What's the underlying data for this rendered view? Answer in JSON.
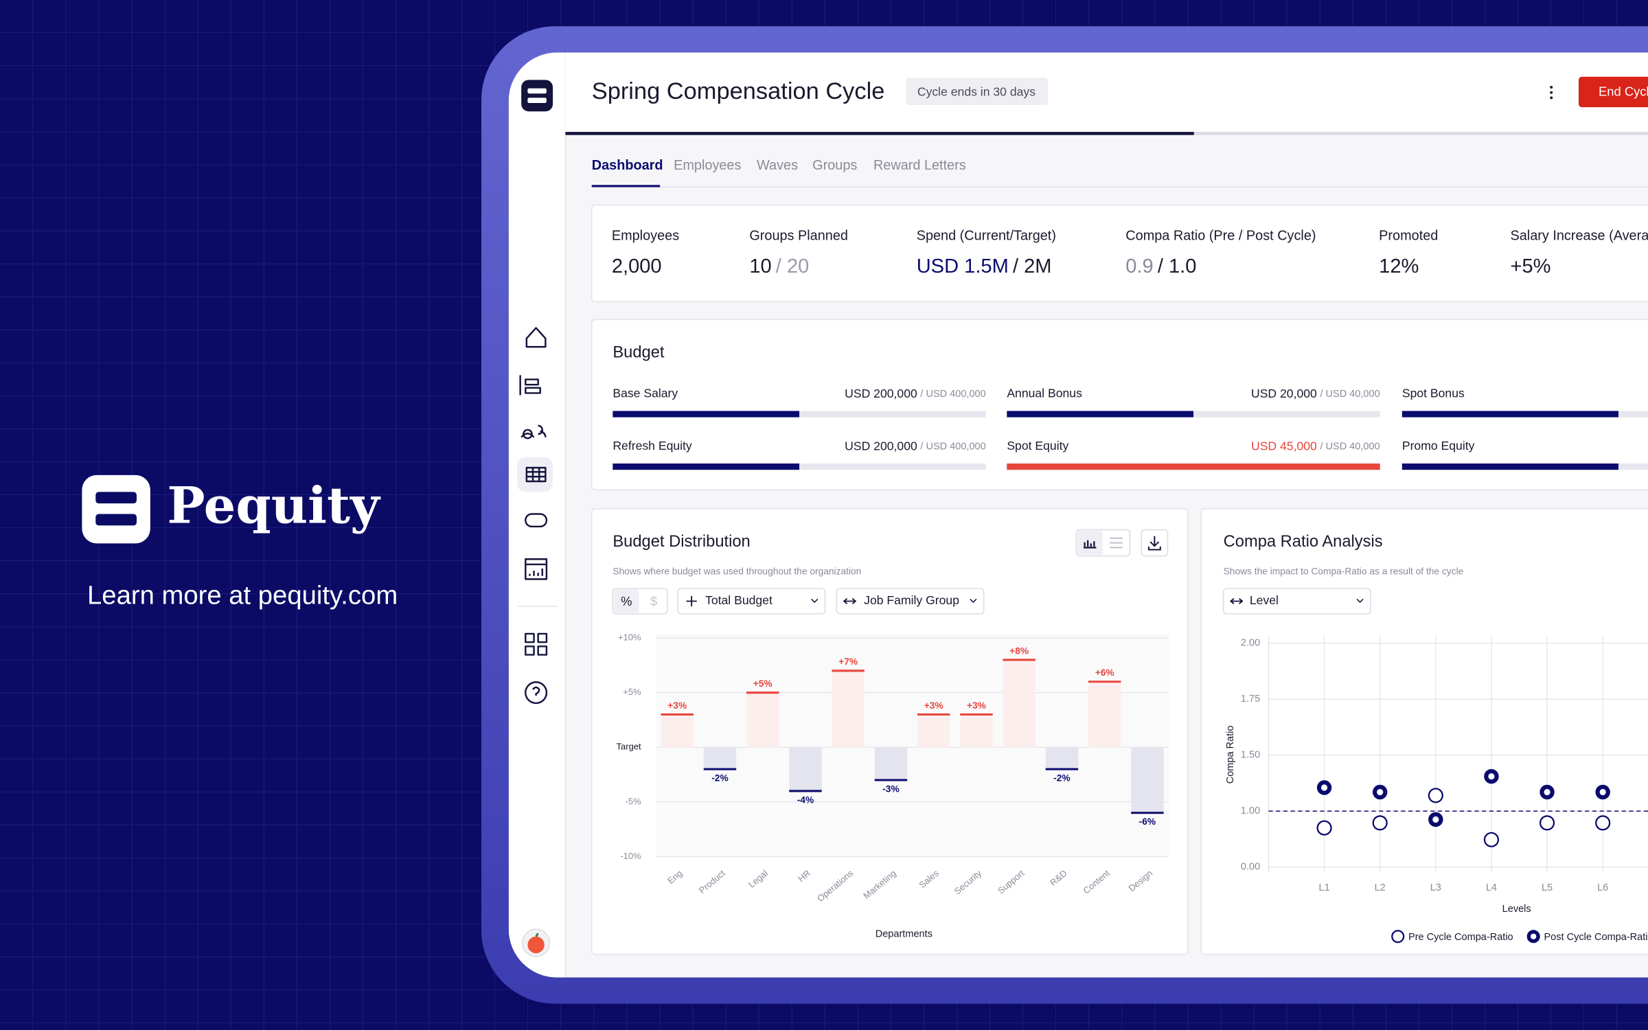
{
  "brand": {
    "name": "Pequity",
    "tagline": "Learn more at pequity.com"
  },
  "header": {
    "title": "Spring Compensation Cycle",
    "badge": "Cycle ends in 30 days",
    "button": "End Cycle"
  },
  "tabs": [
    "Dashboard",
    "Employees",
    "Waves",
    "Groups",
    "Reward Letters"
  ],
  "stats": [
    {
      "label": "Employees",
      "value": "2,000",
      "value_color": "#1a1a2e"
    },
    {
      "label": "Groups Planned",
      "value": "10",
      "target": "/ 20",
      "value_color": "#1a1a2e",
      "target_color": "#9a9aa8"
    },
    {
      "label": "Spend (Current/Target)",
      "value": "USD 1.5M",
      "target": "/ 2M",
      "value_color": "#0b0b6e",
      "target_color": "#1a1a2e"
    },
    {
      "label": "Compa Ratio (Pre / Post Cycle)",
      "value": "0.9",
      "target": "/ 1.0",
      "value_color": "#8a8a98",
      "target_color": "#1a1a2e"
    },
    {
      "label": "Promoted",
      "value": "12%",
      "value_color": "#1a1a2e"
    },
    {
      "label": "Salary Increase (Average)",
      "value": "+5%",
      "value_color": "#1a1a2e"
    }
  ],
  "budget": {
    "title": "Budget",
    "items": [
      {
        "name": "Base Salary",
        "value": 200000,
        "value_label": "USD 200,000",
        "target": 400000,
        "target_label": "/ USD 400,000"
      },
      {
        "name": "Annual Bonus",
        "value": 20000,
        "value_label": "USD 20,000",
        "target": 40000,
        "target_label": "/ USD 40,000"
      },
      {
        "name": "Spot Bonus"
      },
      {
        "name": "Refresh Equity",
        "value": 200000,
        "value_label": "USD 200,000",
        "target": 400000,
        "target_label": "/ USD 400,000"
      },
      {
        "name": "Spot Equity",
        "value": 45000,
        "value_label": "USD 45,000",
        "target": 40000,
        "target_label": "/ USD 40,000"
      },
      {
        "name": "Promo Equity"
      }
    ]
  },
  "chart_data": [
    {
      "type": "bar",
      "title": "Budget Distribution",
      "subtitle": "Shows where budget was used throughout the organization",
      "unit_toggle": [
        "%",
        "$"
      ],
      "filters": [
        "Total Budget",
        "Job Family Group"
      ],
      "categories": [
        "Eng",
        "Product",
        "Legal",
        "HR",
        "Operations",
        "Marketing",
        "Sales",
        "Security",
        "Support",
        "R&D",
        "Content",
        "Design"
      ],
      "values": [
        3,
        -2,
        5,
        -4,
        7,
        -3,
        3,
        3,
        8,
        -2,
        6,
        -6
      ],
      "value_labels": [
        "+3%",
        "-2%",
        "+5%",
        "-4%",
        "+7%",
        "-3%",
        "+3%",
        "+3%",
        "+8%",
        "-2%",
        "+6%",
        "-6%"
      ],
      "positive_color": "#e8453c",
      "negative_color": "#0b0b6e",
      "ylim": [
        -10,
        10
      ],
      "yticks": [
        {
          "value": 10,
          "label": "+10%"
        },
        {
          "value": 5,
          "label": "+5%"
        },
        {
          "value": 0,
          "label": "Target"
        },
        {
          "value": -5,
          "label": "-5%"
        },
        {
          "value": -10,
          "label": "-10%"
        }
      ],
      "x_label": "Departments",
      "grid": true
    },
    {
      "type": "scatter",
      "title": "Compa Ratio Analysis",
      "subtitle": "Shows the impact to Compa-Ratio as a result of the cycle",
      "filters": [
        "Level"
      ],
      "categories": [
        "L1",
        "L2",
        "L3",
        "L4",
        "L5",
        "L6"
      ],
      "series": [
        {
          "name": "Pre Cycle Compa-Ratio",
          "color": "#0b0b6e",
          "values": [
            0.7,
            0.79,
            1.14,
            0.49,
            0.79,
            0.79
          ]
        },
        {
          "name": "Post Cycle Compa-Ratio",
          "color": "#0b0b6e",
          "values": [
            1.21,
            1.17,
            0.85,
            1.31,
            1.17,
            1.17
          ]
        }
      ],
      "ylim": [
        0,
        2
      ],
      "yticks": [
        {
          "value": 2,
          "label": "2.00"
        },
        {
          "value": 1.75,
          "label": "1.75"
        },
        {
          "value": 1.5,
          "label": "1.50"
        },
        {
          "value": 1,
          "label": "1.00"
        },
        {
          "value": 0,
          "label": "0.00"
        }
      ],
      "reference_line": 1,
      "x_label": "Levels",
      "y_label": "Compa Ratio",
      "grid": true
    }
  ]
}
